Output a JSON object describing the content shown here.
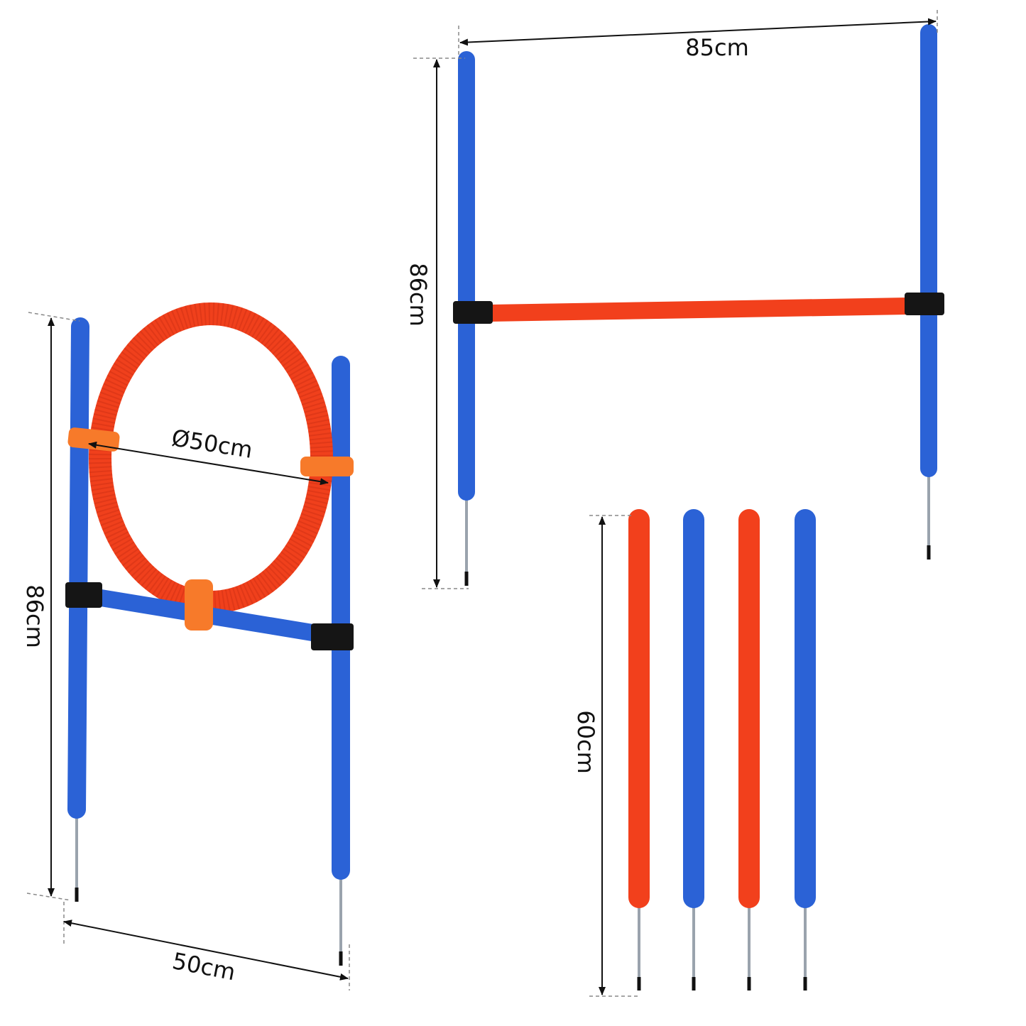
{
  "colors": {
    "blue_pole": "#2b62d6",
    "red_pole": "#f2401c",
    "ring": "#f0401c",
    "strap": "#f77a2a",
    "clamp": "#151515"
  },
  "hoop_set": {
    "height_label": "86cm",
    "width_label": "50cm",
    "diameter_label": "Ø50cm"
  },
  "hurdle_set": {
    "width_label": "85cm",
    "height_label": "86cm"
  },
  "weave_poles": {
    "height_label": "60cm",
    "pole_colors": [
      "red",
      "blue",
      "red",
      "blue"
    ]
  }
}
